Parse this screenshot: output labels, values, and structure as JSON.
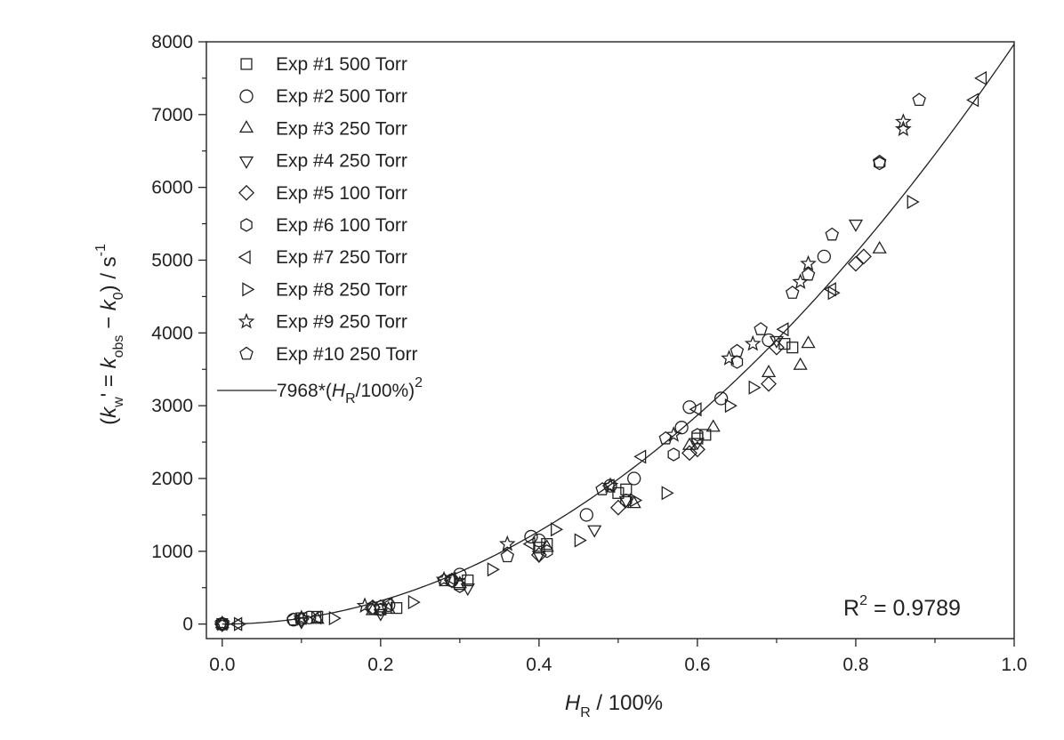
{
  "chart_data": {
    "type": "scatter",
    "x_axis": {
      "range": [
        -0.02,
        1.0
      ],
      "ticks": [
        0.0,
        0.2,
        0.4,
        0.6,
        0.8,
        1.0
      ],
      "tick_labels": [
        "0.0",
        "0.2",
        "0.4",
        "0.6",
        "0.8",
        "1.0"
      ],
      "label_italic": "H",
      "label_sub": "R",
      "label_rest": " / 100%"
    },
    "y_axis": {
      "range": [
        -200,
        8000
      ],
      "ticks": [
        0,
        1000,
        2000,
        3000,
        4000,
        5000,
        6000,
        7000,
        8000
      ],
      "tick_labels": [
        "0",
        "1000",
        "2000",
        "3000",
        "4000",
        "5000",
        "6000",
        "7000",
        "8000"
      ],
      "label_open": "(",
      "label_k1": "k",
      "label_k1_sub": "w",
      "label_mid": "' = ",
      "label_k2": "k",
      "label_k2_sub": "obs",
      "label_minus": " − ",
      "label_k3": "k",
      "label_k3_sub": "0",
      "label_close": ") / s",
      "label_sup": "-1"
    },
    "legend_placement": "top-left",
    "fit": {
      "coefficient": 7968,
      "label_prefix": "7968*(",
      "label_italic": "H",
      "label_sub": "R",
      "label_suffix": "/100%)",
      "label_sup": "2"
    },
    "annotation": {
      "text": "R",
      "sup": "2",
      "value": " = 0.9789"
    },
    "series": [
      {
        "name": "Exp #1 500 Torr",
        "marker": "square",
        "x": [
          0.0,
          0.1,
          0.12,
          0.2,
          0.22,
          0.3,
          0.31,
          0.4,
          0.41,
          0.5,
          0.51,
          0.6,
          0.61,
          0.71,
          0.72
        ],
        "y": [
          0,
          80,
          100,
          200,
          220,
          550,
          600,
          1050,
          1100,
          1800,
          1850,
          2550,
          2600,
          3850,
          3800
        ]
      },
      {
        "name": "Exp #2 500 Torr",
        "marker": "circle",
        "x": [
          0.0,
          0.09,
          0.11,
          0.19,
          0.21,
          0.29,
          0.3,
          0.39,
          0.4,
          0.46,
          0.49,
          0.52,
          0.58,
          0.59,
          0.63,
          0.69,
          0.76
        ],
        "y": [
          0,
          60,
          90,
          220,
          260,
          600,
          680,
          1200,
          1150,
          1500,
          1900,
          2000,
          2700,
          2980,
          3100,
          3900,
          5050
        ]
      },
      {
        "name": "Exp #3 250 Torr",
        "marker": "triangle-up",
        "x": [
          0.0,
          0.12,
          0.19,
          0.21,
          0.3,
          0.41,
          0.52,
          0.59,
          0.62,
          0.69,
          0.73,
          0.74,
          0.83
        ],
        "y": [
          0,
          60,
          180,
          200,
          550,
          1050,
          1650,
          2450,
          2700,
          3450,
          3550,
          3850,
          5150
        ]
      },
      {
        "name": "Exp #4 250 Torr",
        "marker": "triangle-down",
        "x": [
          0.0,
          0.1,
          0.2,
          0.31,
          0.4,
          0.47,
          0.51,
          0.6,
          0.7,
          0.8
        ],
        "y": [
          0,
          40,
          150,
          500,
          950,
          1300,
          1700,
          2500,
          3900,
          5500
        ]
      },
      {
        "name": "Exp #5 100 Torr",
        "marker": "diamond",
        "x": [
          0.0,
          0.1,
          0.19,
          0.29,
          0.4,
          0.5,
          0.59,
          0.6,
          0.69,
          0.7,
          0.8,
          0.81
        ],
        "y": [
          0,
          70,
          230,
          600,
          950,
          1600,
          2350,
          2400,
          3300,
          3800,
          4950,
          5050
        ]
      },
      {
        "name": "Exp #6 100 Torr",
        "marker": "hexagon",
        "x": [
          0.0,
          0.1,
          0.2,
          0.3,
          0.41,
          0.51,
          0.57,
          0.6,
          0.65,
          0.83
        ],
        "y": [
          0,
          60,
          200,
          520,
          1000,
          1700,
          2330,
          2600,
          3600,
          6330
        ]
      },
      {
        "name": "Exp #7 250 Torr",
        "marker": "triangle-left",
        "x": [
          0.02,
          0.12,
          0.21,
          0.29,
          0.39,
          0.49,
          0.53,
          0.6,
          0.71,
          0.77,
          0.95,
          0.96
        ],
        "y": [
          0,
          90,
          270,
          620,
          1100,
          1900,
          2300,
          2950,
          4050,
          4600,
          7200,
          7500
        ]
      },
      {
        "name": "Exp #8 250 Torr",
        "marker": "triangle-right",
        "x": [
          0.02,
          0.14,
          0.24,
          0.34,
          0.42,
          0.45,
          0.52,
          0.56,
          0.64,
          0.67,
          0.77,
          0.87
        ],
        "y": [
          0,
          80,
          300,
          750,
          1300,
          1150,
          1700,
          1800,
          3000,
          3250,
          4550,
          5800
        ]
      },
      {
        "name": "Exp #9 250 Torr",
        "marker": "star",
        "x": [
          0.0,
          0.1,
          0.18,
          0.28,
          0.36,
          0.49,
          0.57,
          0.64,
          0.67,
          0.73,
          0.74,
          0.86,
          0.86
        ],
        "y": [
          0,
          80,
          250,
          610,
          1100,
          1900,
          2600,
          3650,
          3850,
          4700,
          4950,
          6800,
          6900
        ]
      },
      {
        "name": "Exp #10 250 Torr",
        "marker": "pentagon",
        "x": [
          0.0,
          0.09,
          0.2,
          0.28,
          0.36,
          0.48,
          0.56,
          0.65,
          0.68,
          0.72,
          0.74,
          0.77,
          0.83,
          0.88
        ],
        "y": [
          0,
          60,
          240,
          600,
          930,
          1850,
          2550,
          3750,
          4050,
          4550,
          4800,
          5350,
          6350,
          7200
        ]
      }
    ]
  }
}
